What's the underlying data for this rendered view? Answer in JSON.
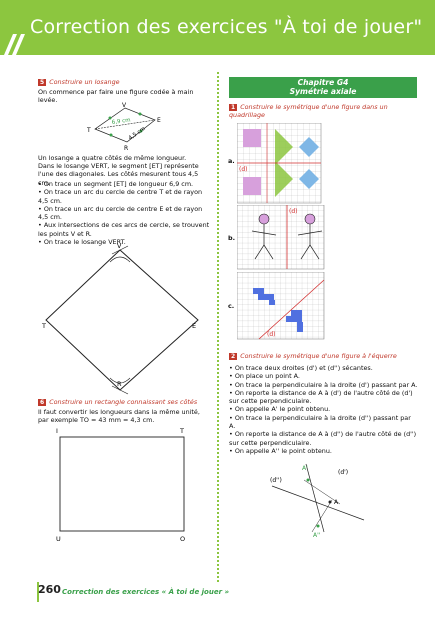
{
  "header": {
    "title": "Correction des exercices \"À toi de jouer\""
  },
  "ex5": {
    "number": "5",
    "title": "Construire un losange",
    "intro": "On commence par faire une figure codée à main levée.",
    "sketch_labels": {
      "v": "V",
      "e": "E",
      "t": "T",
      "r": "R",
      "d1": "6,9 cm",
      "d2": "4,5 cm"
    },
    "p1": "Un losange a quatre côtés de même longueur.",
    "p2": "Dans le losange VERT, le segment [ET] représente l'une des diagonales. Les côtés mesurent tous 4,5 cm.",
    "bullets": [
      "On trace un segment [ET] de longueur 6,9 cm.",
      "On trace un arc du cercle de centre T et de rayon 4,5 cm.",
      "On trace un arc du cercle de centre E et de rayon 4,5 cm.",
      "Aux intersections de ces arcs de cercle, se trouvent les points V et R.",
      "On trace le losange VERT."
    ],
    "figure_labels": {
      "v": "V",
      "e": "E",
      "t": "T",
      "r": "R"
    }
  },
  "ex6": {
    "number": "6",
    "title": "Construire un rectangle connaissant ses côtés",
    "p1": "Il faut convertir les longueurs dans la même unité, par exemple TO = 43 mm = 4,3 cm.",
    "labels": {
      "i": "I",
      "t": "T",
      "u": "U",
      "o": "O"
    }
  },
  "chapter": {
    "name": "Chapitre G4",
    "subtitle": "Symétrie axiale"
  },
  "ex1": {
    "number": "1",
    "title": "Construire le symétrique d'une figure dans un quadrillage",
    "label_a": "a.",
    "label_b": "b.",
    "label_c": "c.",
    "axis_label": "(d)"
  },
  "ex2": {
    "number": "2",
    "title": "Construire le symétrique d'une figure à l'équerre",
    "bullets": [
      "On trace deux droites (d') et (d'') sécantes.",
      "On place un point A.",
      "On trace la perpendiculaire à la droite (d') passant par A.",
      "On reporte la distance de A à (d') de l'autre côté de (d') sur cette perpendiculaire.",
      "On appelle A' le point obtenu.",
      "On trace la perpendiculaire à la droite (d'') passant par A.",
      "On reporte la distance de A à (d'') de l'autre côté de (d'') sur cette perpendiculaire.",
      "On appelle A'' le point obtenu."
    ],
    "labels": {
      "a1": "A'",
      "d1": "(d')",
      "d2": "(d'')",
      "a": "A",
      "a2": "A''"
    }
  },
  "footer": {
    "page": "260",
    "text": "Correction des exercices « À toi de jouer »"
  },
  "colors": {
    "banner": "#8cc63f",
    "accent": "#3aa04a",
    "tag": "#c0392b"
  }
}
